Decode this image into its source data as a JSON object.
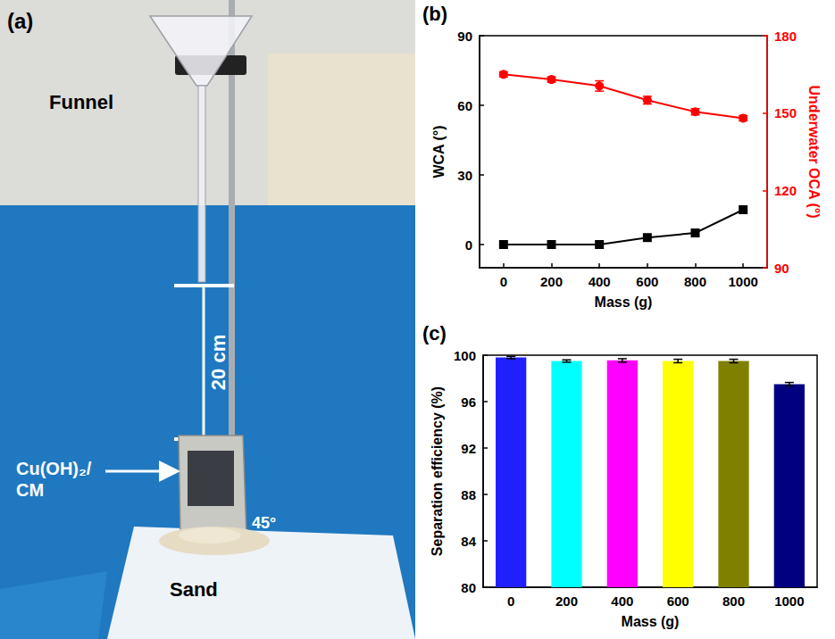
{
  "panel_a": {
    "panel_label": "(a)",
    "texts": {
      "funnel": "Funnel",
      "distance": "20 cm",
      "membrane": [
        "Cu(OH)₂/",
        "CM"
      ],
      "angle": "45°",
      "sand": "Sand"
    }
  },
  "chart_data": [
    {
      "type": "line",
      "panel_label": "(b)",
      "x_label": "Mass (g)",
      "y_label": "WCA (°)",
      "y2_label": "Underwater OCA (°)",
      "x": [
        0,
        200,
        400,
        600,
        800,
        1000
      ],
      "xlim": [
        -100,
        1100
      ],
      "xticks": [
        0,
        200,
        400,
        600,
        800,
        1000
      ],
      "ylim": [
        -10,
        90
      ],
      "yticks": [
        0,
        30,
        60,
        90
      ],
      "y2lim": [
        90,
        180
      ],
      "y2ticks": [
        90,
        120,
        150,
        180
      ],
      "grid": false,
      "series": [
        {
          "name": "WCA",
          "color": "#000000",
          "marker": "square",
          "line_style": "solid",
          "values": [
            0,
            0,
            0,
            3,
            5,
            15
          ]
        },
        {
          "name": "Underwater OCA",
          "color": "#ff0000",
          "marker": "circle",
          "line_style": "solid",
          "axis": "y2",
          "values": [
            165,
            163,
            160.5,
            155,
            150.5,
            148
          ],
          "errors": [
            1,
            1,
            2,
            1.5,
            1.2,
            1
          ]
        }
      ]
    },
    {
      "type": "bar",
      "panel_label": "(c)",
      "x_label": "Mass (g)",
      "y_label": "Separation efficiency (%)",
      "categories": [
        "0",
        "200",
        "400",
        "600",
        "800",
        "1000"
      ],
      "values": [
        99.8,
        99.5,
        99.55,
        99.5,
        99.5,
        97.5
      ],
      "errors": [
        0.1,
        0.1,
        0.15,
        0.15,
        0.15,
        0.15
      ],
      "colors": [
        "#2020ff",
        "#00ffff",
        "#ff00ff",
        "#ffff00",
        "#808000",
        "#000080"
      ],
      "ylim": [
        80,
        100
      ],
      "yticks": [
        80,
        84,
        88,
        92,
        96,
        100
      ],
      "grid": false
    }
  ]
}
